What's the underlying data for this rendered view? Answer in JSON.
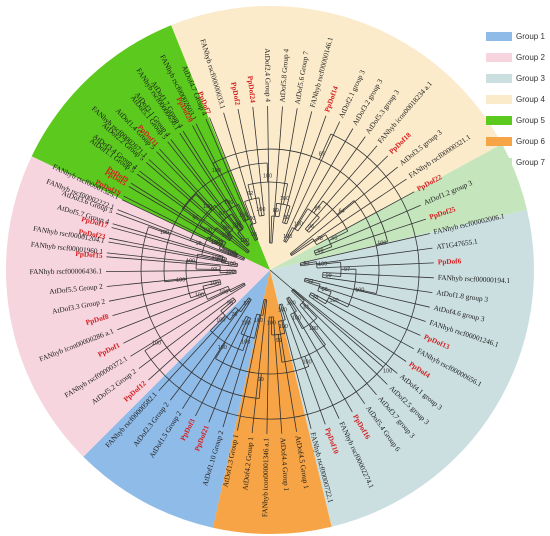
{
  "legend": {
    "groups": [
      {
        "label": "Group 1",
        "color": "#8fbbe8"
      },
      {
        "label": "Group 2",
        "color": "#f6d5df"
      },
      {
        "label": "Group 3",
        "color": "#cbdfe1"
      },
      {
        "label": "Group 4",
        "color": "#fbebcb"
      },
      {
        "label": "Group 5",
        "color": "#5bc91e"
      },
      {
        "label": "Group 6",
        "color": "#f6a445"
      },
      {
        "label": "Group 7",
        "color": "#c5e6bd"
      }
    ]
  },
  "tree": {
    "leaf_color_default": "#1a1a1a",
    "leaf_color_highlight": "#d42020",
    "branch_color": "#333333",
    "sectors": [
      {
        "group": "Group 4",
        "color": "#fbebcb",
        "start": -81.5,
        "end": 61.5
      },
      {
        "group": "Group 7",
        "color": "#c5e6bd",
        "start": 61.5,
        "end": 76.8
      },
      {
        "group": "Group 3",
        "color": "#cbdfe1",
        "start": 76.8,
        "end": 166.5
      },
      {
        "group": "Group 6",
        "color": "#f6a445",
        "start": 166.5,
        "end": 192.5
      },
      {
        "group": "Group 1",
        "color": "#8fbbe8",
        "start": 192.5,
        "end": 225
      },
      {
        "group": "Group 2",
        "color": "#f6d5df",
        "start": 225,
        "end": 295.5
      },
      {
        "group": "Group 5",
        "color": "#5bc91e",
        "start": 295.5,
        "end": 338
      }
    ],
    "leaves": [
      {
        "label": "FANhyb rscf00001960.1",
        "highlight": false
      },
      {
        "label": "PpDof23",
        "highlight": true
      },
      {
        "label": "AtDof5.7 Group 4",
        "highlight": false
      },
      {
        "label": "FANhyb rscf00002222.1",
        "highlight": false
      },
      {
        "label": "PpDof19",
        "highlight": true
      },
      {
        "label": "PpDof9",
        "highlight": true
      },
      {
        "label": "AtDof3.4 Group 4",
        "highlight": false
      },
      {
        "label": "FANhyb rscf00002671.1",
        "highlight": false
      },
      {
        "label": "PpDof11",
        "highlight": true
      },
      {
        "label": "AtDof3.1 Group 4",
        "highlight": false
      },
      {
        "label": "AtDof1.7 Group 4",
        "highlight": false
      },
      {
        "label": "FANhyb rscf00002603.1",
        "highlight": false
      },
      {
        "label": "PpDof7",
        "highlight": true
      },
      {
        "label": "FANhyb rscf00000033.1",
        "highlight": false
      },
      {
        "label": "PpDof2",
        "highlight": true
      },
      {
        "label": "PpDof24",
        "highlight": true
      },
      {
        "label": "AtDof2.4 Group 4",
        "highlight": false
      },
      {
        "label": "AtDof5.8 Group 4",
        "highlight": false
      },
      {
        "label": "AtDof5.6 Group 7",
        "highlight": false
      },
      {
        "label": "FANhyb rscf00000146.1",
        "highlight": false
      },
      {
        "label": "PpDof14",
        "highlight": true
      },
      {
        "label": "AtDof2.1 group 3",
        "highlight": false
      },
      {
        "label": "AtDof3.2 group 3",
        "highlight": false
      },
      {
        "label": "AtDof5.3 group 3",
        "highlight": false
      },
      {
        "label": "FANhyb icon00018234 a.1",
        "highlight": false
      },
      {
        "label": "PpDof18",
        "highlight": true
      },
      {
        "label": "AtDof3.5 group 3",
        "highlight": false
      },
      {
        "label": "FANhyb rscf00000321.1",
        "highlight": false
      },
      {
        "label": "PpDof22",
        "highlight": true
      },
      {
        "label": "AtDof1.2 group 3",
        "highlight": false
      },
      {
        "label": "PpDof25",
        "highlight": true
      },
      {
        "label": "FANhyb rscf00002006.1",
        "highlight": false
      },
      {
        "label": "AT1G47655.1",
        "highlight": false
      },
      {
        "label": "PpDof6",
        "highlight": true
      },
      {
        "label": "FANhyb rscf00000194.1",
        "highlight": false
      },
      {
        "label": "AtDof1.8 group 3",
        "highlight": false
      },
      {
        "label": "AtDof4.6 group 3",
        "highlight": false
      },
      {
        "label": "FANhyb rscf00001246.1",
        "highlight": false
      },
      {
        "label": "PpDof13",
        "highlight": true
      },
      {
        "label": "FANhyb rscf00000656.1",
        "highlight": false
      },
      {
        "label": "PpDof4",
        "highlight": true
      },
      {
        "label": "AtDof4.1 group 3",
        "highlight": false
      },
      {
        "label": "AtDof2.5 group 3",
        "highlight": false
      },
      {
        "label": "AtDof3.7 group 3",
        "highlight": false
      },
      {
        "label": "AtDof5.4 Group 6",
        "highlight": false
      },
      {
        "label": "PpDof16",
        "highlight": true
      },
      {
        "label": "FANhyb rscf00002274.1",
        "highlight": false
      },
      {
        "label": "PpDof10",
        "highlight": true
      },
      {
        "label": "FANhyb rscf00000722.1",
        "highlight": false
      },
      {
        "label": "AtDof4.5 Group 1",
        "highlight": false
      },
      {
        "label": "AtDof4.4 Group 1",
        "highlight": false
      },
      {
        "label": "FANhyb icon00001346 a.1",
        "highlight": false
      },
      {
        "label": "AtDof4.2 Group 1",
        "highlight": false
      },
      {
        "label": "AtDof1.3 Group 1",
        "highlight": false
      },
      {
        "label": "AtDof1.10 Group 2",
        "highlight": false
      },
      {
        "label": "PpDof21",
        "highlight": true
      },
      {
        "label": "PpDof3",
        "highlight": true
      },
      {
        "label": "AtDof1.5 Group 2",
        "highlight": false
      },
      {
        "label": "AtDof2.3 Group 2",
        "highlight": false
      },
      {
        "label": "FANhyb rscf00000582.1",
        "highlight": false
      },
      {
        "label": "PpDof12",
        "highlight": true
      },
      {
        "label": "AtDof5.2 Group 2",
        "highlight": false
      },
      {
        "label": "FANhyb rscf00000372.1",
        "highlight": false
      },
      {
        "label": "PpDof1",
        "highlight": true
      },
      {
        "label": "FANhyb icon00000286 a.1",
        "highlight": false
      },
      {
        "label": "PpDof8",
        "highlight": true
      },
      {
        "label": "AtDof3.3 Group 2",
        "highlight": false
      },
      {
        "label": "AtDof5.5 Group 2",
        "highlight": false
      },
      {
        "label": "FANhyb rscf00006436.1",
        "highlight": false
      },
      {
        "label": "PpDof15",
        "highlight": true
      },
      {
        "label": "FANhyb rscf00001204.1",
        "highlight": false
      },
      {
        "label": "PpDof17",
        "highlight": true
      },
      {
        "label": "AtDof3.6 Group 5",
        "highlight": false
      },
      {
        "label": "FANhyb rscf00001325.1",
        "highlight": false
      },
      {
        "label": "PpDof5",
        "highlight": true
      },
      {
        "label": "AtDof1.1 Group 5",
        "highlight": false
      },
      {
        "label": "AtDof2.2 Group 5",
        "highlight": false
      },
      {
        "label": "AtDof1.4 Group 5",
        "highlight": false
      },
      {
        "label": "AtDof5.1 Group 5",
        "highlight": false
      },
      {
        "label": "FANhyb rscf00000650.1",
        "highlight": false
      },
      {
        "label": "PpDof20",
        "highlight": true
      },
      {
        "label": "AtDof4.7 Group 4",
        "highlight": false
      }
    ],
    "bootstrap_labels": [
      "100",
      "100",
      "100",
      "100",
      "99",
      "98",
      "97",
      "97",
      "96",
      "95",
      "100",
      "100",
      "92",
      "89",
      "82",
      "100",
      "100",
      "100",
      "100",
      "100",
      "96",
      "89",
      "78",
      "69",
      "65",
      "64",
      "59",
      "100",
      "99",
      "97",
      "92",
      "86",
      "78",
      "100",
      "100",
      "100",
      "87",
      "81",
      "100",
      "100",
      "100",
      "100",
      "100",
      "100",
      "99",
      "100",
      "100",
      "100",
      "100",
      "57",
      "76",
      "99",
      "100",
      "100",
      "99",
      "100",
      "100",
      "100",
      "100",
      "93",
      "100",
      "100",
      "100",
      "100",
      "100",
      "100",
      "100",
      "100",
      "100",
      "100",
      "100",
      "100",
      "100",
      "100",
      "100",
      "100",
      "100",
      "99",
      "100",
      "100"
    ]
  }
}
